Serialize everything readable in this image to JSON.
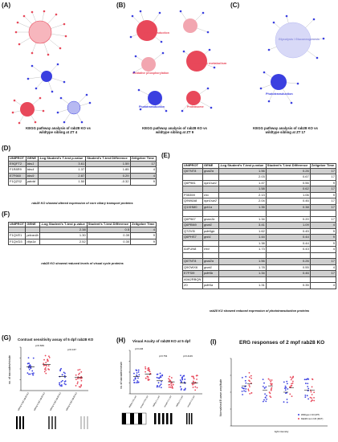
{
  "panel_labels": {
    "a": "(A)",
    "b": "(B)",
    "c": "(C)",
    "d": "(D)",
    "e": "(E)",
    "f": "(F)",
    "g": "(G)",
    "h": "(H)",
    "i": "(I)"
  },
  "captions": {
    "a_line1": "KEGG pathway analysis of rab28 KO vs",
    "a_line2": "wildtype sibling at ZT 4",
    "b_line1": "KEGG pathway analysis of rab28 KO vs",
    "b_line2": "wildtype sibling at ZT 9",
    "c_line1": "KEGG pathway analysis of rab28 KO vs",
    "c_line2": "wildtype sibling at ZT 17",
    "d": "rab28 KO showed altered expression of core ciliary transport proteins",
    "f": "rab28 KO showed reduced levels of visual cycle proteins",
    "e": "rab28 KO showed reduced expression of phototransduction proteins"
  },
  "network_b": {
    "n1": "Phototransduction",
    "n2": "Oxidative phosphorylation",
    "n3": "Propanoate metabolism",
    "n4": "Phototransduction",
    "n5": "Proteasome"
  },
  "network_c": {
    "n1": "Glycolysis / Gluconeogenesis",
    "n2": "Phototransduction"
  },
  "table_d": {
    "headers": [
      "UNIPROT",
      "GENE",
      "-Log Student's T-test p-value",
      "Student's T-test Difference",
      "Zeitgeber Time"
    ],
    "rows": [
      [
        "E9QFT2",
        "bbs1",
        "3.61",
        "1.59",
        "17"
      ],
      [
        "F1R8R9",
        "bbs4",
        "1.37",
        "1.85",
        "4"
      ],
      [
        "E7F660",
        "bbs9",
        "2.87",
        "0.29",
        "4"
      ],
      [
        "F1QZS2",
        "pdrdd",
        "1.50",
        "-0.32",
        "9"
      ]
    ]
  },
  "table_f": {
    "headers": [
      "UNIPROT",
      "GENE",
      "-Log Student's T-test p-value",
      "Student's T-test Difference",
      "Zeitgeber Time"
    ],
    "rows": [
      [
        "",
        "",
        "2.38",
        "0.5",
        "4"
      ],
      [
        "F1QVE1",
        "pdcar4b",
        "1.30",
        "0.39",
        "9"
      ],
      [
        "F1QVD3",
        "rlbp1a",
        "2.52",
        "0.30",
        "9"
      ]
    ]
  },
  "table_e": {
    "headers": [
      "UNIPROT",
      "GENE",
      "-Log Student's T-test p-value",
      "Student's T-test Difference",
      "Zeitgeber Time"
    ],
    "rows": [
      [
        "Q6TNT8",
        "gnai2a",
        "1.56",
        "0.26",
        "17"
      ],
      [
        "",
        "",
        "2.03",
        "0.67",
        "17"
      ],
      [
        "Q6P981",
        "opn1sw1",
        "1.47",
        "0.56",
        "9"
      ],
      [
        "",
        "",
        "1.58",
        "0.62",
        "17"
      ],
      [
        "P35359",
        "rho",
        "2.13",
        "1.06",
        "9"
      ],
      [
        "Q9W6A8",
        "opn1sw2",
        "2.04",
        "0.46",
        "17"
      ],
      [
        "Q1XHM0",
        "grk1a",
        "1.35",
        "0.38",
        "17"
      ],
      [
        "",
        "",
        "",
        "",
        ""
      ],
      [
        "Q6P967",
        "gnao1b",
        "1.34",
        "0.20",
        "17"
      ],
      [
        "Q6PBN9",
        "gnat1",
        "3.41",
        "1.09",
        "4"
      ],
      [
        "Q7ZVI5",
        "pde6gb",
        "1.62",
        "0.45",
        "9"
      ],
      [
        "Q6PHS7",
        "gnb1",
        "1.44",
        "0.44",
        "9"
      ],
      [
        "",
        "",
        "1.38",
        "0.44",
        "9"
      ],
      [
        "A4FUN8",
        "rhol",
        "1.73",
        "0.43",
        "4"
      ],
      [
        "",
        "",
        "",
        "",
        ""
      ],
      [
        "Q6TNT8",
        "gnai2a",
        "1.56",
        "0.26",
        "17"
      ],
      [
        "Q9OWX6",
        "gnat1",
        "1.78",
        "0.55",
        "4"
      ],
      [
        "E7FSI9",
        "pde6b",
        "1.34",
        "0.46",
        "17"
      ],
      [
        "A0A2RBQN",
        "",
        "",
        "",
        ""
      ],
      [
        "Z0",
        "pde6a",
        "1.31",
        "0.35",
        "4"
      ]
    ]
  },
  "panel_g": {
    "title": "Contrast sensitivity assay of 5 dpf rab28 KO",
    "ylabel": "no. of saccades/minute",
    "pvals": [
      "p=0.849",
      "p=0.167"
    ],
    "xlabels": [
      "sibling 5 dpf rab28 KO",
      "sibling 5 dpf rab28 KO"
    ]
  },
  "panel_h": {
    "title": "Visual Acuity of rab28 KO at 5 dpf",
    "ylabel": "no. of saccades/minute",
    "pvals": [
      "p=0.446",
      "p=0.754",
      "p=0.4149"
    ],
    "xlabels": [
      "sibling 0.05 cycl",
      "mutant 0.05 cycl",
      "sibling 0.1 cycl",
      "mutant 0.1 cycl",
      "sibling 0.2 cycl",
      "mutant 0.2 cycl"
    ]
  },
  "panel_i": {
    "title": "ERG responses of 2 mpf rab28 KO",
    "ylabel": "Normalised B wave amplitude",
    "xlabel": "light intensity",
    "legend": [
      "Wildtype n=23 (WT)",
      "Rab28 mut n=23 (MUT)"
    ]
  },
  "chart_data": [
    {
      "type": "scatter",
      "title": "Contrast sensitivity assay of 5 dpf rab28 KO",
      "ylabel": "no. of saccades/minute",
      "ylim": [
        0,
        40
      ],
      "categories": [
        "sibling",
        "rab28 KO",
        "sibling",
        "rab28 KO"
      ],
      "series": [
        {
          "values": [
            22,
            24,
            13,
            12
          ]
        }
      ]
    },
    {
      "type": "scatter",
      "title": "Visual Acuity of rab28 KO at 5 dpf",
      "ylabel": "no. of saccades/minute",
      "ylim": [
        0,
        40
      ],
      "categories": [
        "sibling 0.05",
        "mutant 0.05",
        "sibling 0.1",
        "mutant 0.1",
        "sibling 0.2",
        "mutant 0.2"
      ],
      "series": [
        {
          "values": [
            16,
            18,
            12,
            11,
            10,
            10
          ]
        }
      ]
    },
    {
      "type": "scatter",
      "title": "ERG responses of 2 mpf rab28 KO",
      "ylabel": "Normalised B wave amplitude",
      "xlabel": "light intensity",
      "ylim": [
        0,
        1.6
      ],
      "series": [
        {
          "name": "Wildtype n=23 (WT)",
          "values": [
            0.95,
            0.85,
            0.8,
            0.85
          ]
        },
        {
          "name": "Rab28 mut n=23 (MUT)",
          "values": [
            1.0,
            0.95,
            0.9,
            0.85
          ]
        }
      ]
    }
  ],
  "colors": {
    "red": "#e8485a",
    "pink": "#f2a6b0",
    "blue": "#3a3fe0",
    "lightblue": "#b7b9f2",
    "gray": "#cfcfcf"
  }
}
